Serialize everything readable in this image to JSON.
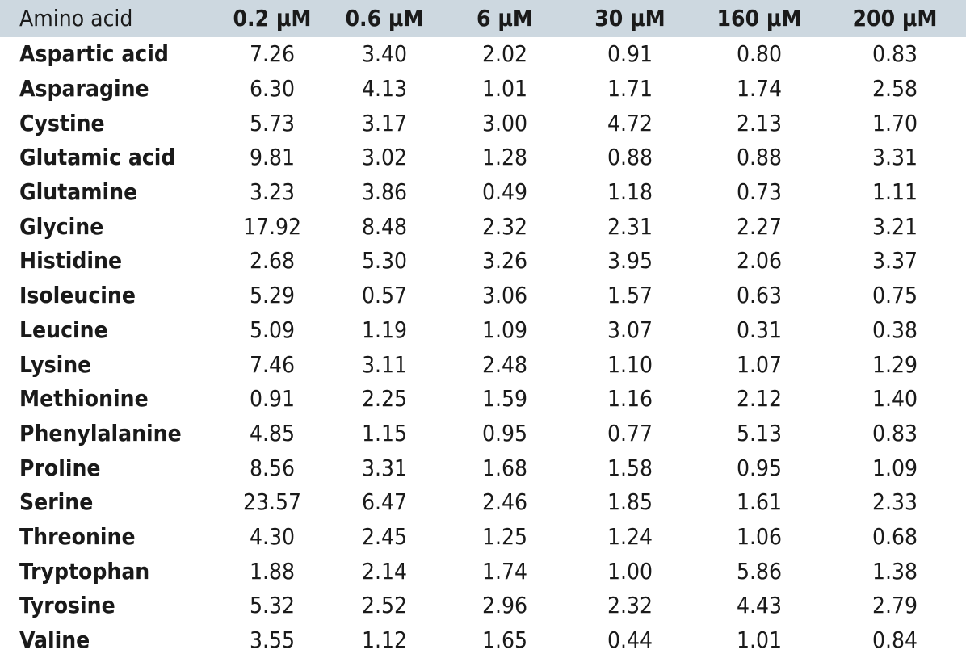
{
  "table": {
    "header_bg": "#cdd8e0",
    "columns": [
      "Amino acid",
      "0.2 μM",
      "0.6 μM",
      "6 μM",
      "30 μM",
      "160 μM",
      "200 μM"
    ],
    "rows": [
      [
        "Aspartic acid",
        "7.26",
        "3.40",
        "2.02",
        "0.91",
        "0.80",
        "0.83"
      ],
      [
        "Asparagine",
        "6.30",
        "4.13",
        "1.01",
        "1.71",
        "1.74",
        "2.58"
      ],
      [
        "Cystine",
        "5.73",
        "3.17",
        "3.00",
        "4.72",
        "2.13",
        "1.70"
      ],
      [
        "Glutamic acid",
        "9.81",
        "3.02",
        "1.28",
        "0.88",
        "0.88",
        "3.31"
      ],
      [
        "Glutamine",
        "3.23",
        "3.86",
        "0.49",
        "1.18",
        "0.73",
        "1.11"
      ],
      [
        "Glycine",
        "17.92",
        "8.48",
        "2.32",
        "2.31",
        "2.27",
        "3.21"
      ],
      [
        "Histidine",
        "2.68",
        "5.30",
        "3.26",
        "3.95",
        "2.06",
        "3.37"
      ],
      [
        "Isoleucine",
        "5.29",
        "0.57",
        "3.06",
        "1.57",
        "0.63",
        "0.75"
      ],
      [
        "Leucine",
        "5.09",
        "1.19",
        "1.09",
        "3.07",
        "0.31",
        "0.38"
      ],
      [
        "Lysine",
        "7.46",
        "3.11",
        "2.48",
        "1.10",
        "1.07",
        "1.29"
      ],
      [
        "Methionine",
        "0.91",
        "2.25",
        "1.59",
        "1.16",
        "2.12",
        "1.40"
      ],
      [
        "Phenylalanine",
        "4.85",
        "1.15",
        "0.95",
        "0.77",
        "5.13",
        "0.83"
      ],
      [
        "Proline",
        "8.56",
        "3.31",
        "1.68",
        "1.58",
        "0.95",
        "1.09"
      ],
      [
        "Serine",
        "23.57",
        "6.47",
        "2.46",
        "1.85",
        "1.61",
        "2.33"
      ],
      [
        "Threonine",
        "4.30",
        "2.45",
        "1.25",
        "1.24",
        "1.06",
        "0.68"
      ],
      [
        "Tryptophan",
        "1.88",
        "2.14",
        "1.74",
        "1.00",
        "5.86",
        "1.38"
      ],
      [
        "Tyrosine",
        "5.32",
        "2.52",
        "2.96",
        "2.32",
        "4.43",
        "2.79"
      ],
      [
        "Valine",
        "3.55",
        "1.12",
        "1.65",
        "0.44",
        "1.01",
        "0.84"
      ]
    ]
  }
}
